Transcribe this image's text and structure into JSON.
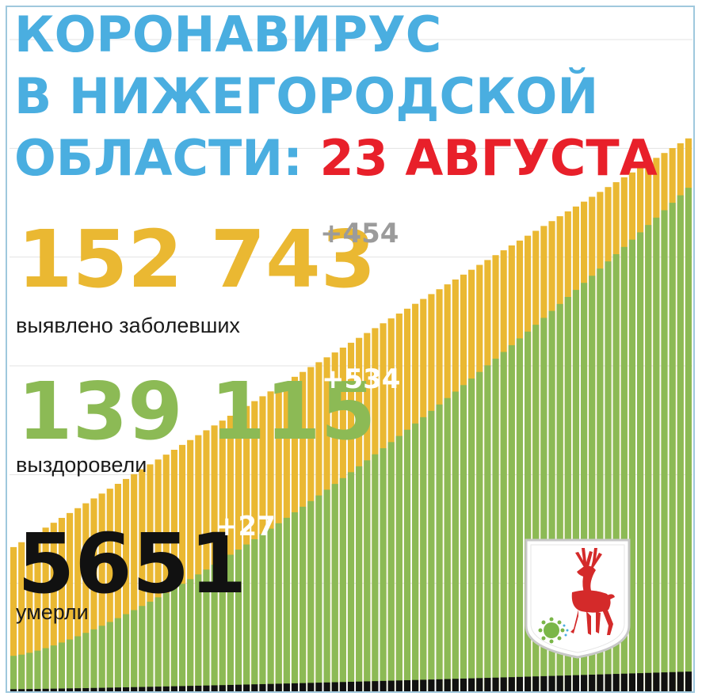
{
  "header": {
    "line1": "КОРОНАВИРУС",
    "line2": "В НИЖЕГОРОДСКОЙ",
    "line3_prefix": "ОБЛАСТИ:",
    "line3_date": "23 АВГУСТА"
  },
  "stats": {
    "cases": {
      "value": "152 743",
      "delta": "+454",
      "label": "выявлено заболевших"
    },
    "recovered": {
      "value": "139 115",
      "delta": "+534",
      "label": "выздоровели"
    },
    "deaths": {
      "value": "5651",
      "delta": "+27",
      "label": "умерли"
    }
  },
  "colors": {
    "title": "#4aaee0",
    "date": "#e8202a",
    "cases": "#eab832",
    "recovered": "#8cba55",
    "deaths": "#111111",
    "delta_gray": "#9b9b9b",
    "frame": "#9fc8dd",
    "emblem_red": "#d42a2a"
  },
  "emblem": {
    "icon": "nizhny-novgorod-coat-of-arms-deer-icon",
    "virus_icon": "coronavirus-icon"
  },
  "chart_data": {
    "type": "bar",
    "stacked": true,
    "grid": true,
    "series": [
      {
        "values_start": 40000,
        "values_end": 152743
      },
      {
        "values_start": 10000,
        "values_end": 139115
      },
      {
        "values_start": 800,
        "values_end": 5651
      }
    ],
    "bar_count": 85,
    "ylim": [
      0,
      180000
    ]
  }
}
